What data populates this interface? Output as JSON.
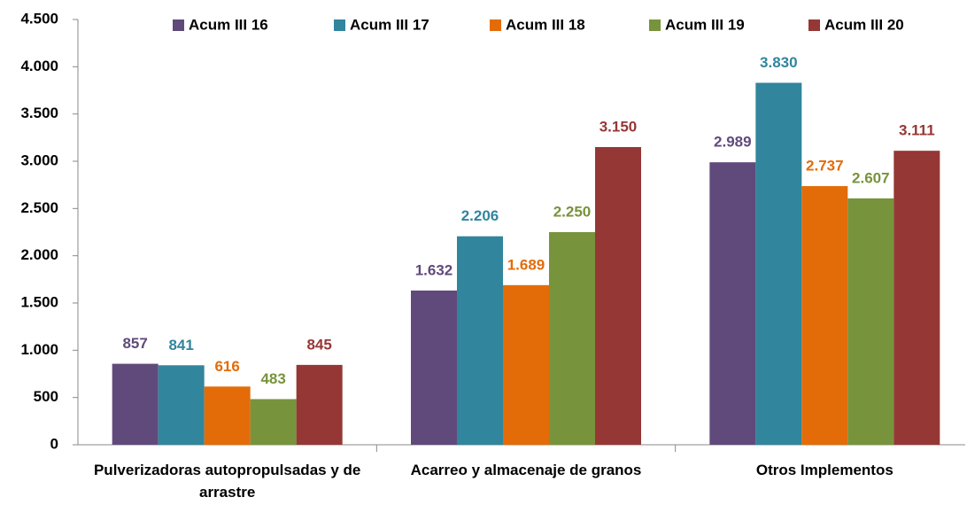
{
  "chart_data": {
    "type": "bar",
    "categories": [
      "Pulverizadoras autopropulsadas y de arrastre",
      "Acarreo y almacenaje de granos",
      "Otros Implementos"
    ],
    "series": [
      {
        "name": "Acum III 16",
        "color": "#604a7b",
        "values": [
          857,
          1632,
          2989
        ],
        "value_labels": [
          "857",
          "1.632",
          "2.989"
        ]
      },
      {
        "name": "Acum III 17",
        "color": "#31859c",
        "values": [
          841,
          2206,
          3830
        ],
        "value_labels": [
          "841",
          "2.206",
          "3.830"
        ]
      },
      {
        "name": "Acum III 18",
        "color": "#e36c09",
        "values": [
          616,
          1689,
          2737
        ],
        "value_labels": [
          "616",
          "1.689",
          "2.737"
        ]
      },
      {
        "name": "Acum III 19",
        "color": "#77933c",
        "values": [
          483,
          2250,
          2607
        ],
        "value_labels": [
          "483",
          "2.250",
          "2.607"
        ]
      },
      {
        "name": "Acum III 20",
        "color": "#953735",
        "values": [
          845,
          3150,
          3111
        ],
        "value_labels": [
          "845",
          "3.150",
          "3.111"
        ]
      }
    ],
    "ylim": [
      0,
      4500
    ],
    "yticks": [
      0,
      500,
      {
        "value": 1000,
        "label": "1.000"
      },
      {
        "value": 1500,
        "label": "1.500"
      },
      {
        "value": 2000,
        "label": "2.000"
      },
      {
        "value": 2500,
        "label": "2.500"
      },
      {
        "value": 3000,
        "label": "3.000"
      },
      {
        "value": 3500,
        "label": "3.500"
      },
      {
        "value": 4000,
        "label": "4.000"
      },
      {
        "value": 4500,
        "label": "4.500"
      }
    ],
    "grid": false,
    "legend": "top"
  }
}
